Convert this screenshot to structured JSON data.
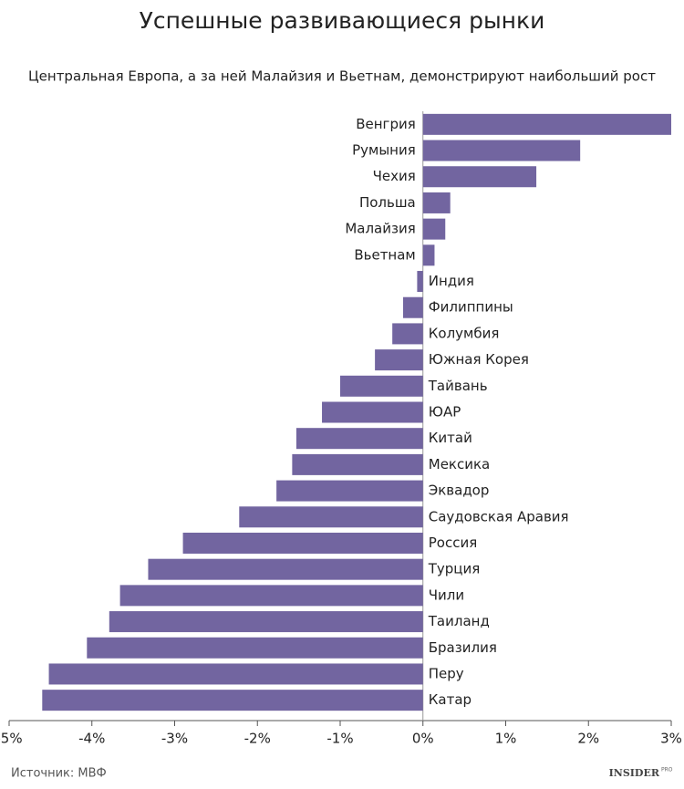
{
  "chart_data": {
    "type": "hbar",
    "title": "Успешные развивающиеся рынки",
    "subtitle": "Центральная Европа, а за ней Малайзия и Вьетнам, демонстрируют наибольший рост",
    "source": "Источник: МВФ",
    "brand": "INSIDER",
    "brand_suffix": "PRO",
    "categories": [
      "Венгрия",
      "Румыния",
      "Чехия",
      "Польша",
      "Малайзия",
      "Вьетнам",
      "Индия",
      "Филиппины",
      "Колумбия",
      "Южная Корея",
      "Тайвань",
      "ЮАР",
      "Китай",
      "Мексика",
      "Эквадор",
      "Саудовская Аравия",
      "Россия",
      "Турция",
      "Чили",
      "Таиланд",
      "Бразилия",
      "Перу",
      "Катар"
    ],
    "values": [
      3.0,
      1.9,
      1.37,
      0.33,
      0.27,
      0.14,
      -0.07,
      -0.24,
      -0.37,
      -0.58,
      -1.0,
      -1.22,
      -1.53,
      -1.58,
      -1.77,
      -2.22,
      -2.9,
      -3.32,
      -3.66,
      -3.79,
      -4.06,
      -4.52,
      -4.6
    ],
    "color": "#7265a0",
    "xlim": [
      -5,
      3
    ],
    "xticks": [
      {
        "value": -5,
        "label": "-5%"
      },
      {
        "value": -4,
        "label": "-4%"
      },
      {
        "value": -3,
        "label": "-3%"
      },
      {
        "value": -2,
        "label": "-2%"
      },
      {
        "value": -1,
        "label": "-1%"
      },
      {
        "value": 0,
        "label": "0%"
      },
      {
        "value": 1,
        "label": "1%"
      },
      {
        "value": 2,
        "label": "2%"
      },
      {
        "value": 3,
        "label": "3%"
      }
    ]
  }
}
